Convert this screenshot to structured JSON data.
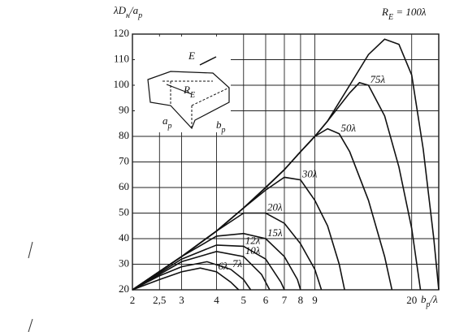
{
  "chart_data": {
    "type": "line",
    "y_label": [
      {
        "t": "λD"
      },
      {
        "t": "н",
        "sub": true
      },
      {
        "t": "/a"
      },
      {
        "t": "p",
        "sub": true
      }
    ],
    "x_label": [
      {
        "t": "b"
      },
      {
        "t": "p",
        "sub": true
      },
      {
        "t": "/λ"
      }
    ],
    "top_label": [
      {
        "t": "R"
      },
      {
        "t": "E",
        "sub": true
      },
      {
        "t": " = 100λ"
      }
    ],
    "inset": {
      "e": "E",
      "re": [
        {
          "t": "R"
        },
        {
          "t": "E",
          "sub": true
        }
      ],
      "ap": [
        {
          "t": "a"
        },
        {
          "t": "p",
          "sub": true
        }
      ],
      "bp": [
        {
          "t": "b"
        },
        {
          "t": "p",
          "sub": true
        }
      ]
    },
    "log_x": true,
    "grid": true,
    "color": "#111",
    "xlim": [
      2,
      25
    ],
    "ylim": [
      20,
      120
    ],
    "xticks": [
      2,
      {
        "value": 2.5,
        "label": "2,5"
      },
      3,
      4,
      5,
      6,
      7,
      8,
      9,
      20
    ],
    "yticks": [
      20,
      30,
      40,
      50,
      60,
      70,
      80,
      90,
      100,
      110,
      120
    ],
    "series": [
      {
        "name": "6λ",
        "x": [
          2,
          2.5,
          3,
          3.5,
          4,
          4.5,
          4.8
        ],
        "values": [
          20,
          24,
          27,
          28.5,
          27,
          23,
          20
        ]
      },
      {
        "name": "7λ",
        "x": [
          2,
          2.5,
          3,
          3.7,
          4.5,
          5,
          5.3
        ],
        "values": [
          20,
          25.5,
          29,
          31,
          28,
          24,
          20
        ]
      },
      {
        "name": "10λ",
        "x": [
          2,
          2.5,
          3,
          4,
          5,
          5.8,
          6.2
        ],
        "values": [
          20,
          26,
          31,
          35,
          33,
          26,
          20
        ]
      },
      {
        "name": "12λ",
        "x": [
          2,
          2.5,
          3,
          4,
          5,
          6,
          6.8,
          7
        ],
        "values": [
          20,
          26.5,
          32,
          37.5,
          37,
          32,
          23,
          20
        ]
      },
      {
        "name": "15λ",
        "x": [
          2,
          2.5,
          3,
          4,
          5,
          6,
          7,
          7.8,
          8
        ],
        "values": [
          20,
          27,
          33,
          41,
          42,
          40,
          33,
          24,
          20
        ]
      },
      {
        "name": "20λ",
        "x": [
          2,
          3,
          4,
          5,
          6,
          7,
          8,
          9,
          9.5
        ],
        "values": [
          20,
          33,
          43,
          50,
          50,
          46,
          38,
          28,
          20
        ]
      },
      {
        "name": "30λ",
        "x": [
          2,
          3,
          4,
          5,
          6,
          7,
          8,
          9,
          10,
          11,
          11.5
        ],
        "values": [
          20,
          33,
          43,
          52,
          59,
          64,
          63,
          55,
          45,
          30,
          20
        ]
      },
      {
        "name": "50λ",
        "x": [
          2,
          3,
          4,
          5,
          6,
          7,
          8,
          9,
          10,
          11,
          12,
          14,
          16,
          17
        ],
        "values": [
          20,
          33,
          43,
          52,
          60,
          67,
          74,
          80,
          83,
          81,
          74,
          55,
          33,
          20
        ]
      },
      {
        "name": "75λ",
        "x": [
          2,
          3,
          4,
          5,
          6,
          7,
          8,
          9,
          10,
          12,
          13,
          14,
          16,
          18,
          20,
          21.5
        ],
        "values": [
          20,
          33,
          43,
          52,
          60,
          67,
          74,
          80,
          86,
          97,
          101,
          100,
          88,
          68,
          44,
          20
        ]
      },
      {
        "x": [
          2,
          3,
          4,
          5,
          6,
          7,
          8,
          9,
          10,
          12,
          14,
          16,
          18,
          20,
          22,
          24,
          25
        ],
        "values": [
          20,
          33,
          43,
          52,
          60,
          67,
          74,
          80,
          86,
          100,
          112,
          118,
          116,
          104,
          75,
          40,
          20
        ]
      }
    ]
  }
}
